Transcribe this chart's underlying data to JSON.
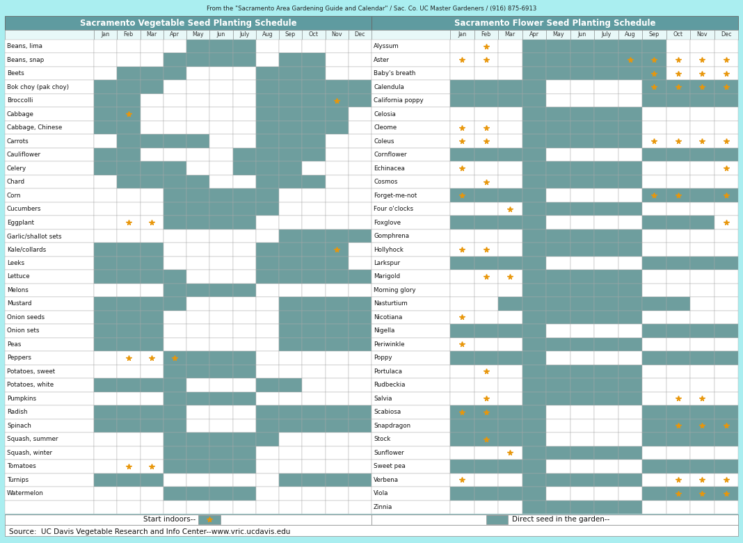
{
  "top_note": "From the \"Sacramento Area Gardening Guide and Calendar\" / Sac. Co. UC Master Gardeners / (916) 875-6913",
  "veg_title": "Sacramento Vegetable Seed Planting Schedule",
  "flower_title": "Sacramento Flower Seed Planting Schedule",
  "months": [
    "Jan",
    "Feb",
    "Mar",
    "Apr",
    "May",
    "Jun",
    "July",
    "Aug",
    "Sep",
    "Oct",
    "Nov",
    "Dec"
  ],
  "source_text": "Source:  UC Davis Vegetable Research and Info Center--www.vric.ucdavis.edu",
  "legend_left": "Start indoors--",
  "legend_right": "Direct seed in the garden--",
  "bg_color": "#aaeef0",
  "header_bg": "#5f9ba0",
  "cell_filled": "#6e9e9e",
  "cell_empty": "#ffffff",
  "header_row_bg": "#e8f8f8",
  "star_color": "#e8960a",
  "veg_items": [
    {
      "name": "Beans, lima",
      "filled": [
        4,
        5,
        6
      ],
      "stars": []
    },
    {
      "name": "Beans, snap",
      "filled": [
        3,
        4,
        5,
        6,
        8,
        9
      ],
      "stars": []
    },
    {
      "name": "Beets",
      "filled": [
        1,
        2,
        3,
        7,
        8,
        9
      ],
      "stars": []
    },
    {
      "name": "Bok choy (pak choy)",
      "filled": [
        0,
        1,
        2,
        7,
        8,
        9,
        10,
        11
      ],
      "stars": []
    },
    {
      "name": "Broccolli",
      "filled": [
        0,
        1,
        7,
        8,
        9,
        10,
        11
      ],
      "stars": [
        10
      ]
    },
    {
      "name": "Cabbage",
      "filled": [
        0,
        1,
        7,
        8,
        9,
        10
      ],
      "stars": [
        1
      ]
    },
    {
      "name": "Cabbage, Chinese",
      "filled": [
        0,
        1,
        7,
        8,
        9,
        10
      ],
      "stars": []
    },
    {
      "name": "Carrots",
      "filled": [
        1,
        2,
        3,
        4,
        7,
        8,
        9
      ],
      "stars": []
    },
    {
      "name": "Cauliflower",
      "filled": [
        0,
        1,
        6,
        7,
        8,
        9
      ],
      "stars": []
    },
    {
      "name": "Celery",
      "filled": [
        0,
        1,
        2,
        3,
        6,
        7,
        8
      ],
      "stars": []
    },
    {
      "name": "Chard",
      "filled": [
        1,
        2,
        3,
        4,
        7,
        8,
        9
      ],
      "stars": []
    },
    {
      "name": "Corn",
      "filled": [
        3,
        4,
        5,
        6,
        7
      ],
      "stars": []
    },
    {
      "name": "Cucumbers",
      "filled": [
        3,
        4,
        5,
        6,
        7
      ],
      "stars": []
    },
    {
      "name": "Eggplant",
      "filled": [
        3,
        4,
        5,
        6
      ],
      "stars": [
        1,
        2
      ]
    },
    {
      "name": "Garlic/shallot sets",
      "filled": [
        8,
        9,
        10,
        11
      ],
      "stars": []
    },
    {
      "name": "Kale/collards",
      "filled": [
        0,
        1,
        2,
        7,
        8,
        9,
        10
      ],
      "stars": [
        10
      ]
    },
    {
      "name": "Leeks",
      "filled": [
        0,
        1,
        2,
        7,
        8,
        9,
        10
      ],
      "stars": []
    },
    {
      "name": "Lettuce",
      "filled": [
        0,
        1,
        2,
        3,
        7,
        8,
        9,
        10,
        11
      ],
      "stars": []
    },
    {
      "name": "Melons",
      "filled": [
        3,
        4,
        5,
        6
      ],
      "stars": []
    },
    {
      "name": "Mustard",
      "filled": [
        0,
        1,
        2,
        3,
        8,
        9,
        10,
        11
      ],
      "stars": []
    },
    {
      "name": "Onion seeds",
      "filled": [
        0,
        1,
        2,
        8,
        9,
        10,
        11
      ],
      "stars": []
    },
    {
      "name": "Onion sets",
      "filled": [
        0,
        1,
        2,
        8,
        9,
        10,
        11
      ],
      "stars": []
    },
    {
      "name": "Peas",
      "filled": [
        0,
        1,
        2,
        8,
        9,
        10,
        11
      ],
      "stars": []
    },
    {
      "name": "Peppers",
      "filled": [
        3,
        4,
        5,
        6
      ],
      "stars": [
        1,
        2,
        3
      ]
    },
    {
      "name": "Potatoes, sweet",
      "filled": [
        3,
        4,
        5,
        6
      ],
      "stars": []
    },
    {
      "name": "Potatoes, white",
      "filled": [
        0,
        1,
        2,
        3,
        7,
        8
      ],
      "stars": []
    },
    {
      "name": "Pumpkins",
      "filled": [
        3,
        4,
        5,
        6
      ],
      "stars": []
    },
    {
      "name": "Radish",
      "filled": [
        0,
        1,
        2,
        3,
        7,
        8,
        9,
        10,
        11
      ],
      "stars": []
    },
    {
      "name": "Spinach",
      "filled": [
        0,
        1,
        2,
        3,
        7,
        8,
        9,
        10,
        11
      ],
      "stars": []
    },
    {
      "name": "Squash, summer",
      "filled": [
        3,
        4,
        5,
        6,
        7
      ],
      "stars": []
    },
    {
      "name": "Squash, winter",
      "filled": [
        3,
        4,
        5,
        6
      ],
      "stars": []
    },
    {
      "name": "Tomatoes",
      "filled": [
        3,
        4,
        5,
        6
      ],
      "stars": [
        1,
        2
      ]
    },
    {
      "name": "Turnips",
      "filled": [
        0,
        1,
        2,
        8,
        9,
        10,
        11
      ],
      "stars": []
    },
    {
      "name": "Watermelon",
      "filled": [
        3,
        4,
        5,
        6
      ],
      "stars": []
    }
  ],
  "flower_items": [
    {
      "name": "Alyssum",
      "filled": [
        3,
        4,
        5,
        6,
        7,
        8
      ],
      "stars": [
        1
      ]
    },
    {
      "name": "Aster",
      "filled": [
        3,
        4,
        5,
        6,
        7,
        8
      ],
      "stars": [
        0,
        1,
        7,
        8,
        9,
        10,
        11
      ]
    },
    {
      "name": "Baby's breath",
      "filled": [
        3,
        4,
        5,
        6,
        7,
        8
      ],
      "stars": [
        8,
        9,
        10,
        11
      ]
    },
    {
      "name": "Calendula",
      "filled": [
        0,
        1,
        2,
        3,
        8,
        9,
        10,
        11
      ],
      "stars": [
        8,
        9,
        10,
        11
      ]
    },
    {
      "name": "California poppy",
      "filled": [
        0,
        1,
        2,
        3,
        8,
        9,
        10,
        11
      ],
      "stars": []
    },
    {
      "name": "Celosia",
      "filled": [
        3,
        4,
        5,
        6,
        7
      ],
      "stars": []
    },
    {
      "name": "Cleome",
      "filled": [
        3,
        4,
        5,
        6,
        7
      ],
      "stars": [
        0,
        1
      ]
    },
    {
      "name": "Coleus",
      "filled": [
        3,
        4,
        5,
        6,
        7
      ],
      "stars": [
        0,
        1,
        8,
        9,
        10,
        11
      ]
    },
    {
      "name": "Cornflower",
      "filled": [
        0,
        1,
        2,
        3,
        8,
        9,
        10,
        11
      ],
      "stars": []
    },
    {
      "name": "Echinacea",
      "filled": [
        3,
        4,
        5,
        6,
        7
      ],
      "stars": [
        0,
        11
      ]
    },
    {
      "name": "Cosmos",
      "filled": [
        3,
        4,
        5,
        6,
        7
      ],
      "stars": [
        1
      ]
    },
    {
      "name": "Forget-me-not",
      "filled": [
        0,
        1,
        2,
        3,
        8,
        9,
        10,
        11
      ],
      "stars": [
        0,
        8,
        9,
        11
      ]
    },
    {
      "name": "Four o'clocks",
      "filled": [
        3,
        4,
        5,
        6,
        7
      ],
      "stars": [
        2
      ]
    },
    {
      "name": "Foxglove",
      "filled": [
        0,
        1,
        2,
        3,
        8,
        9,
        10
      ],
      "stars": [
        11
      ]
    },
    {
      "name": "Gomphrena",
      "filled": [
        3,
        4,
        5,
        6,
        7
      ],
      "stars": []
    },
    {
      "name": "Hollyhock",
      "filled": [
        3,
        4,
        5,
        6,
        7
      ],
      "stars": [
        0,
        1
      ]
    },
    {
      "name": "Larkspur",
      "filled": [
        0,
        1,
        2,
        3,
        8,
        9,
        10,
        11
      ],
      "stars": []
    },
    {
      "name": "Marigold",
      "filled": [
        3,
        4,
        5,
        6,
        7
      ],
      "stars": [
        1,
        2
      ]
    },
    {
      "name": "Morning glory",
      "filled": [
        3,
        4,
        5,
        6,
        7
      ],
      "stars": []
    },
    {
      "name": "Nasturtium",
      "filled": [
        2,
        3,
        4,
        5,
        6,
        7,
        8,
        9
      ],
      "stars": []
    },
    {
      "name": "Nicotiana",
      "filled": [
        3,
        4,
        5,
        6,
        7
      ],
      "stars": [
        0
      ]
    },
    {
      "name": "Nigella",
      "filled": [
        0,
        1,
        2,
        3,
        8,
        9,
        10,
        11
      ],
      "stars": []
    },
    {
      "name": "Periwinkle",
      "filled": [
        3,
        4,
        5,
        6,
        7
      ],
      "stars": [
        0
      ]
    },
    {
      "name": "Poppy",
      "filled": [
        0,
        1,
        2,
        3,
        8,
        9,
        10,
        11
      ],
      "stars": []
    },
    {
      "name": "Portulaca",
      "filled": [
        3,
        4,
        5,
        6,
        7
      ],
      "stars": [
        1
      ]
    },
    {
      "name": "Rudbeckia",
      "filled": [
        3,
        4,
        5,
        6,
        7
      ],
      "stars": []
    },
    {
      "name": "Salvia",
      "filled": [
        3,
        4,
        5,
        6,
        7
      ],
      "stars": [
        1,
        9,
        10
      ]
    },
    {
      "name": "Scabiosa",
      "filled": [
        0,
        1,
        2,
        3,
        8,
        9,
        10,
        11
      ],
      "stars": [
        0,
        1
      ]
    },
    {
      "name": "Snapdragon",
      "filled": [
        0,
        1,
        2,
        3,
        8,
        9,
        10,
        11
      ],
      "stars": [
        9,
        10,
        11
      ]
    },
    {
      "name": "Stock",
      "filled": [
        0,
        1,
        2,
        3,
        8,
        9,
        10,
        11
      ],
      "stars": [
        1
      ]
    },
    {
      "name": "Sunflower",
      "filled": [
        3,
        4,
        5,
        6,
        7
      ],
      "stars": [
        2
      ]
    },
    {
      "name": "Sweet pea",
      "filled": [
        0,
        1,
        2,
        3,
        8,
        9,
        10,
        11
      ],
      "stars": []
    },
    {
      "name": "Verbena",
      "filled": [
        3,
        4,
        5,
        6,
        7
      ],
      "stars": [
        0,
        9,
        10,
        11
      ]
    },
    {
      "name": "Viola",
      "filled": [
        0,
        1,
        2,
        3,
        8,
        9,
        10,
        11
      ],
      "stars": [
        9,
        10,
        11
      ]
    },
    {
      "name": "Zinnia",
      "filled": [
        3,
        4,
        5,
        6,
        7
      ],
      "stars": []
    }
  ]
}
